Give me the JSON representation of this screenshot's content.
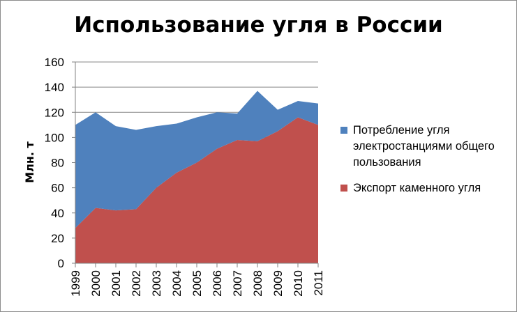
{
  "chart_data": {
    "type": "area",
    "stacked": true,
    "title": "Использование угля в России",
    "ylabel": "Млн. т",
    "xlabel": "",
    "ylim": [
      0,
      160
    ],
    "yticks": [
      "0",
      "20",
      "40",
      "60",
      "80",
      "100",
      "120",
      "140",
      "160"
    ],
    "categories": [
      "1999",
      "2000",
      "2001",
      "2002",
      "2003",
      "2004",
      "2005",
      "2006",
      "2007",
      "2008",
      "2009",
      "2010",
      "2011"
    ],
    "grid": true,
    "legend_position": "right",
    "series": [
      {
        "name": "Экспорт каменного угля",
        "color": "#c0504d",
        "values": [
          28,
          44,
          42,
          43,
          60,
          72,
          80,
          91,
          98,
          97,
          105,
          116,
          110
        ]
      },
      {
        "name": "Потребление угля электростанциями общего пользования",
        "color": "#4f81bd",
        "values": [
          82,
          76,
          67,
          63,
          49,
          39,
          36,
          29,
          21,
          40,
          17,
          13,
          17
        ]
      }
    ],
    "legend": [
      {
        "label": "Потребление угля электростанциями общего пользования",
        "color": "#4f81bd"
      },
      {
        "label": "Экспорт каменного угля",
        "color": "#c0504d"
      }
    ]
  }
}
